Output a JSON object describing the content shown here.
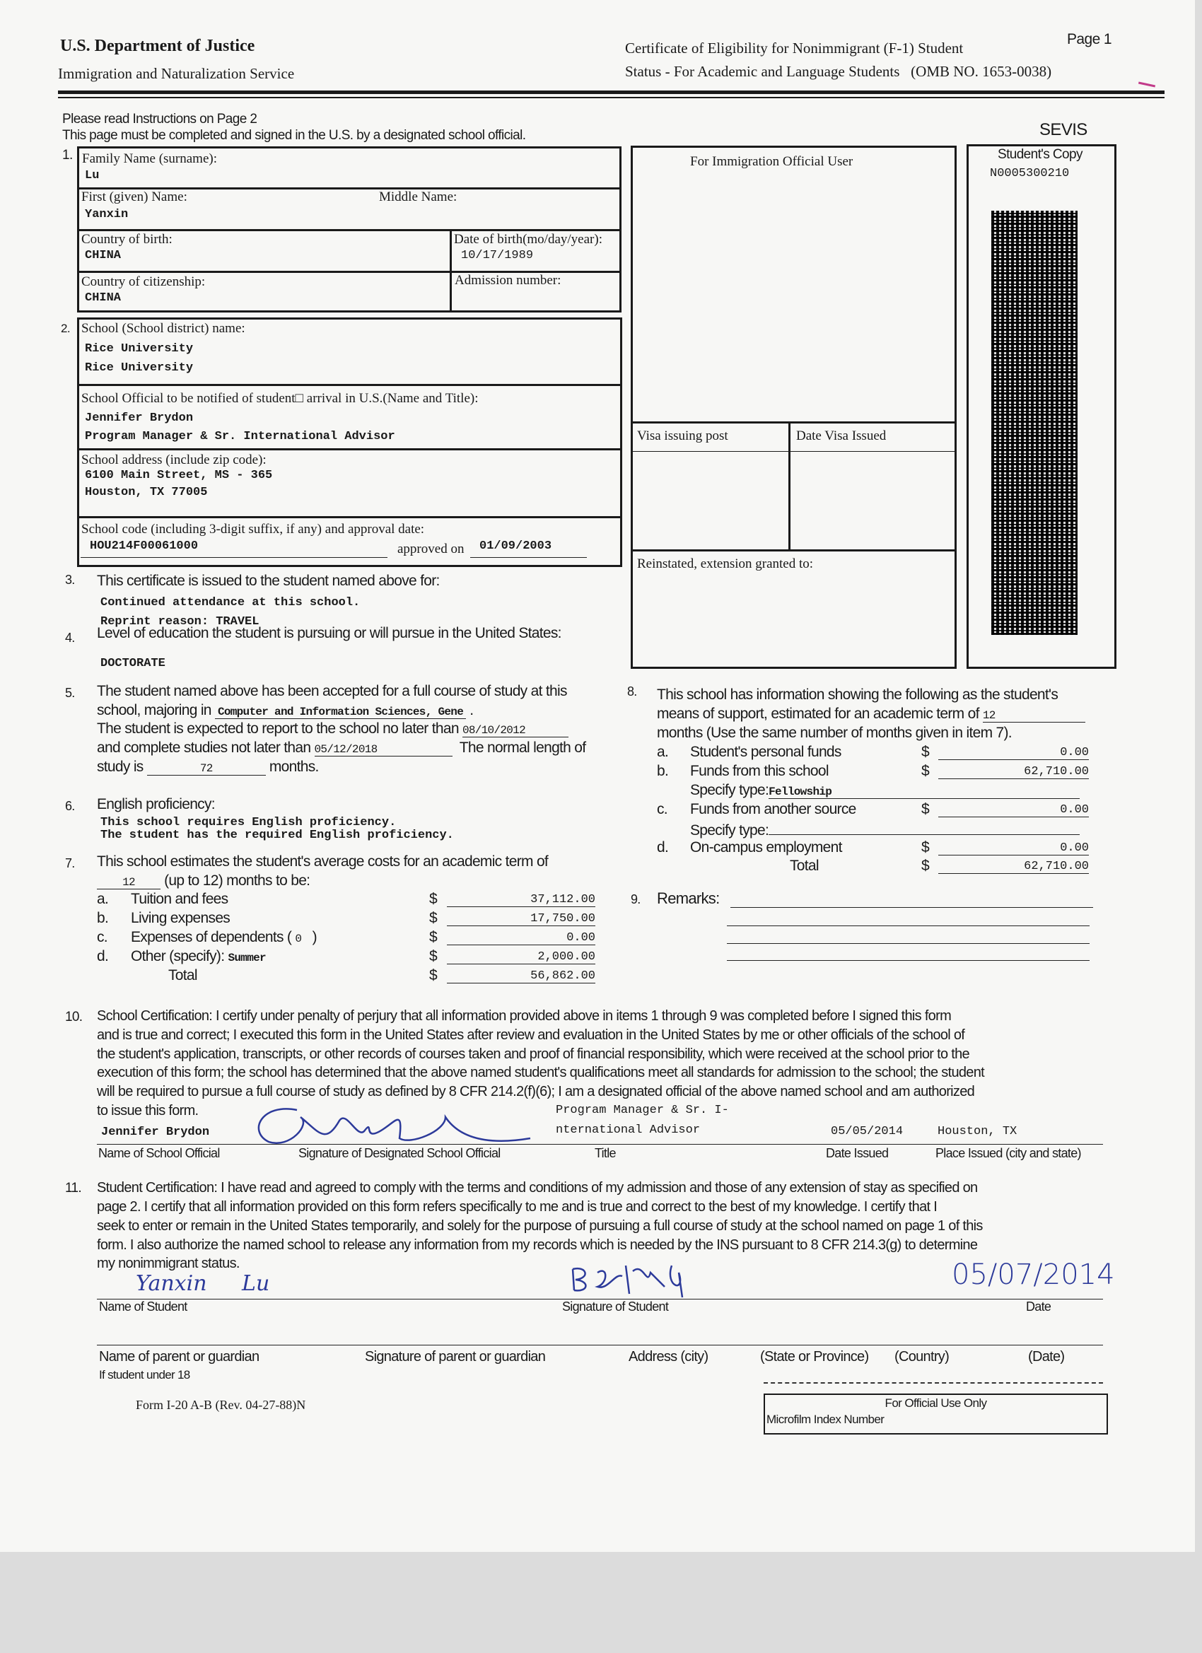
{
  "header": {
    "agency": "U.S. Department of Justice",
    "service": "Immigration and Naturalization Service",
    "form_title_line1": "Certificate of Eligibility for Nonimmigrant (F-1) Student",
    "form_title_line2": "Status - For Academic and Language Students",
    "omb": "(OMB NO. 1653-0038)",
    "page": "Page 1"
  },
  "instructions": {
    "line1": "Please read Instructions on Page 2",
    "line2": "This page must be completed and signed in the U.S. by a designated school official."
  },
  "section1": {
    "number": "1.",
    "family_name_label": "Family Name (surname):",
    "family_name": "Lu",
    "first_name_label": "First (given) Name:",
    "first_name": "Yanxin",
    "middle_name_label": "Middle Name:",
    "country_birth_label": "Country of birth:",
    "country_birth": "CHINA",
    "dob_label": "Date of birth(mo/day/year):",
    "dob": "10/17/1989",
    "citizenship_label": "Country of citizenship:",
    "citizenship": "CHINA",
    "admission_label": "Admission number:"
  },
  "section2": {
    "number": "2.",
    "school_label": "School (School district) name:",
    "school_line1": "Rice University",
    "school_line2": "Rice University",
    "official_label": "School Official to be notified of student□ arrival in U.S.(Name and Title):",
    "official_name": "Jennifer Brydon",
    "official_title": "Program Manager & Sr. International Advisor",
    "address_label": "School address (include zip code):",
    "address_line1": "6100 Main Street, MS - 365",
    "address_line2": "Houston, TX 77005",
    "code_label": "School code (including 3-digit suffix, if any) and approval date:",
    "code": "HOU214F00061000",
    "approved_label": "approved on",
    "approved_date": "01/09/2003"
  },
  "immigration": {
    "title": "For Immigration Official User",
    "visa_post_label": "Visa issuing post",
    "visa_date_label": "Date Visa Issued",
    "reinstated_label": "Reinstated, extension granted to:"
  },
  "sevis": {
    "title": "SEVIS",
    "copy_label": "Student's Copy",
    "id": "N0005300210"
  },
  "item3": {
    "number": "3.",
    "text": "This certificate is issued to the student named above for:",
    "value": "Continued attendance at this school.",
    "reprint": "Reprint reason: TRAVEL"
  },
  "item4": {
    "number": "4.",
    "text": "Level of education the student is pursuing or will pursue in the United States:",
    "value": "DOCTORATE"
  },
  "item5": {
    "number": "5.",
    "line1": "The student named above has been accepted for a full course of study at this",
    "line2_pre": "school, majoring in",
    "major": "Computer and Information Sciences, Gene",
    "line3_pre": "The student is expected to report to the school no later than",
    "report_date": "08/10/2012",
    "line4_pre": "and complete studies not later than",
    "complete_date": "05/12/2018",
    "line4_post": "The normal length of",
    "line5_pre": "study is",
    "months": "72",
    "line5_post": "months."
  },
  "item6": {
    "number": "6.",
    "label": "English proficiency:",
    "line1": "This school requires English proficiency.",
    "line2": "The student has the required English proficiency."
  },
  "item7": {
    "number": "7.",
    "line1": "This school estimates the student's average costs for an academic term of",
    "months": "12",
    "line2": "(up to 12) months to be:",
    "rows": [
      {
        "letter": "a.",
        "label": "Tuition and fees",
        "amount": "37,112.00"
      },
      {
        "letter": "b.",
        "label": "Living expenses",
        "amount": "17,750.00"
      },
      {
        "letter": "c.",
        "label": "Expenses of dependents (",
        "extra": "0",
        "close": ")",
        "amount": "0.00"
      },
      {
        "letter": "d.",
        "label": "Other (specify):",
        "extra": "Summer",
        "amount": "2,000.00"
      }
    ],
    "total_label": "Total",
    "total": "56,862.00",
    "currency": "$"
  },
  "item8": {
    "number": "8.",
    "line1": "This school has information showing the following as the student's",
    "line2": "means of support, estimated for an academic term of",
    "months": "12",
    "line3": "months (Use the same number of months given in item 7).",
    "rows": [
      {
        "letter": "a.",
        "label": "Student's personal funds",
        "amount": "0.00"
      },
      {
        "letter": "b.",
        "label": "Funds from this school",
        "amount": "62,710.00"
      },
      {
        "letter": "c.",
        "label": "Funds from another source",
        "amount": "0.00"
      },
      {
        "letter": "d.",
        "label": "On-campus employment",
        "amount": "0.00"
      }
    ],
    "specify_label": "Specify type:",
    "specify_b": "Fellowship",
    "total_label": "Total",
    "total": "62,710.00",
    "currency": "$"
  },
  "item9": {
    "number": "9.",
    "label": "Remarks:"
  },
  "item10": {
    "number": "10.",
    "lines": [
      "School Certification: I certify under penalty of perjury that all information provided above in items 1 through 9 was completed before I signed this form",
      "and is true and correct; I executed this form in the United States after review and evaluation in the United States by me or other officials of the school of",
      "the student's application, transcripts, or other records of courses taken and proof of financial responsibility, which were received at the school prior to the",
      "execution of this form; the school has determined that the above named student's qualifications meet all standards for admission to the school; the student",
      "will be required to pursue a full course of study as defined by 8 CFR 214.2(f)(6); I am a designated official of the above named school and am authorized",
      "to issue this form."
    ],
    "official_name": "Jennifer Brydon",
    "title_line1": "Program Manager & Sr. I-",
    "title_line2": "nternational Advisor",
    "date_issued": "05/05/2014",
    "place_issued": "Houston, TX",
    "labels": {
      "name": "Name of School Official",
      "signature": "Signature of Designated School Official",
      "title": "Title",
      "date": "Date Issued",
      "place": "Place Issued (city and state)"
    }
  },
  "item11": {
    "number": "11.",
    "lines": [
      "Student Certification: I have read and agreed to comply with the terms and conditions of my admission and those of any extension of stay as specified on",
      "page 2. I certify that all information provided on this form refers specifically to me and is true and correct to the best of my knowledge. I certify that I",
      "seek to enter or remain in the United States temporarily, and solely for the purpose of pursuing a full course of study at the school named on page 1 of this",
      "form. I also authorize the named school to release any information from my records which is needed by the INS pursuant to 8 CFR 214.3(g) to determine",
      "my nonimmigrant status."
    ],
    "student_name_handwritten": "Yanxin Lu",
    "date_handwritten": "05/07/2014",
    "labels": {
      "name": "Name of Student",
      "signature": "Signature of Student",
      "date": "Date"
    }
  },
  "guardian": {
    "name": "Name of parent or guardian",
    "under18": "If student under 18",
    "signature": "Signature of parent or guardian",
    "city": "Address (city)",
    "state": "(State or Province)",
    "country": "(Country)",
    "date": "(Date)"
  },
  "footer": {
    "form_id": "Form I-20 A-B (Rev. 04-27-88)N",
    "official_use": "For Official Use Only",
    "microfilm": "Microfilm Index Number"
  },
  "colors": {
    "ink": "#1a1a1a",
    "handwriting": "#2c3a9a",
    "paper": "#f7f7f5"
  }
}
